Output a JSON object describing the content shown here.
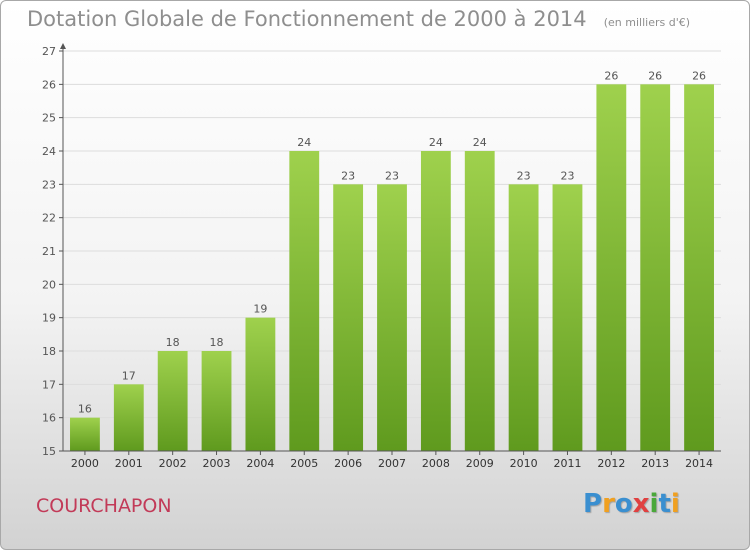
{
  "title": "Dotation Globale de Fonctionnement de 2000 à 2014",
  "unit": "(en milliers d'€)",
  "commune": "COURCHAPON",
  "logo": {
    "text": "Proxiti",
    "letters": [
      "P",
      "r",
      "o",
      "x",
      "i",
      "t",
      "i"
    ],
    "colors": [
      "#3a8fd0",
      "#f0a020",
      "#3a8fd0",
      "#e04040",
      "#4aa83a",
      "#3a8fd0",
      "#f0a020"
    ]
  },
  "colors": {
    "bar": "#8cc63f",
    "bar_dark": "#5f9a1e",
    "axis": "#555555",
    "grid": "#dddddd"
  },
  "chart_data": {
    "type": "bar",
    "categories": [
      "2000",
      "2001",
      "2002",
      "2003",
      "2004",
      "2005",
      "2006",
      "2007",
      "2008",
      "2009",
      "2010",
      "2011",
      "2012",
      "2013",
      "2014"
    ],
    "values": [
      16,
      17,
      18,
      18,
      19,
      24,
      23,
      23,
      24,
      24,
      23,
      23,
      26,
      26,
      26
    ],
    "ylim": [
      15,
      27
    ],
    "yticks": [
      15,
      16,
      17,
      18,
      19,
      20,
      21,
      22,
      23,
      24,
      25,
      26,
      27
    ],
    "grid": true
  }
}
